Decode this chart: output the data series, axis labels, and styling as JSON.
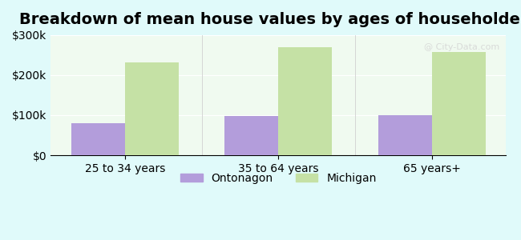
{
  "title": "Breakdown of mean house values by ages of householders",
  "categories": [
    "25 to 34 years",
    "35 to 64 years",
    "65 years+"
  ],
  "ontonagon_values": [
    80000,
    97000,
    100000
  ],
  "michigan_values": [
    232000,
    270000,
    258000
  ],
  "ontonagon_color": "#b39ddb",
  "michigan_color": "#c5e1a5",
  "ylim": [
    0,
    300000
  ],
  "yticks": [
    0,
    100000,
    200000,
    300000
  ],
  "ytick_labels": [
    "$0",
    "$100k",
    "$200k",
    "$300k"
  ],
  "background_color": "#e0fafa",
  "plot_bg_color": "#f0faf0",
  "legend_labels": [
    "Ontonagon",
    "Michigan"
  ],
  "bar_width": 0.35,
  "title_fontsize": 14,
  "tick_fontsize": 10,
  "legend_fontsize": 10
}
